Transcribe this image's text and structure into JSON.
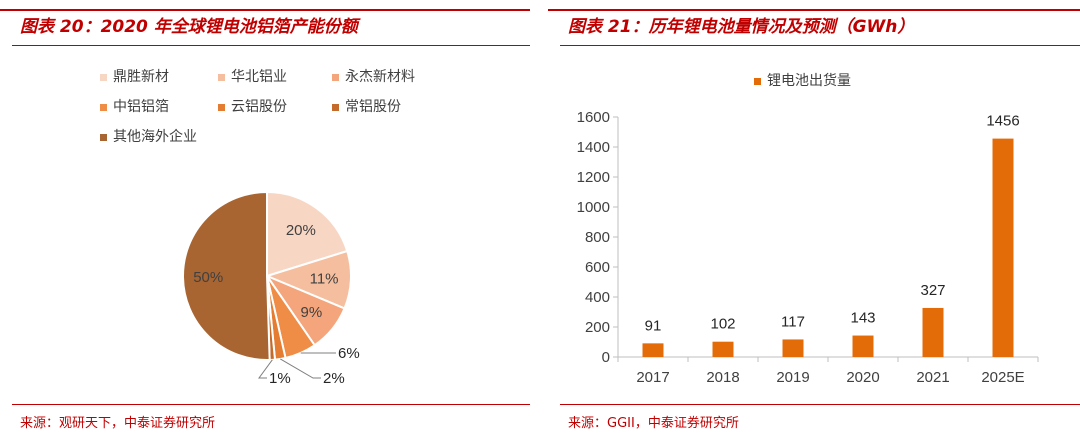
{
  "left": {
    "title": "图表 20：2020 年全球锂电池铝箔产能份额",
    "source": "来源：观研天下，中泰证券研究所"
  },
  "right": {
    "title": "图表 21：历年锂电池量情况及预测（GWh）",
    "source": "来源：GGII，中泰证券研究所"
  },
  "chart_data": [
    {
      "type": "pie",
      "title": "2020 年全球锂电池铝箔产能份额",
      "labels": [
        "鼎胜新材",
        "华北铝业",
        "永杰新材料",
        "中铝铝箔",
        "云铝股份",
        "常铝股份",
        "其他海外企业"
      ],
      "values": [
        20,
        11,
        9,
        6,
        2,
        1,
        50
      ],
      "value_labels": [
        "20%",
        "11%",
        "9%",
        "6%",
        "2%",
        "1%",
        "50%"
      ],
      "colors": [
        "#f8d6c4",
        "#f5bf9f",
        "#f4a57c",
        "#ef8c46",
        "#e47d32",
        "#c46a2a",
        "#a86532"
      ],
      "legend_position": "top"
    },
    {
      "type": "bar",
      "title": "历年锂电池量情况及预测（GWh）",
      "categories": [
        "2017",
        "2018",
        "2019",
        "2020",
        "2021",
        "2025E"
      ],
      "series": [
        {
          "name": "锂电池出货量",
          "values": [
            91,
            102,
            117,
            143,
            327,
            1456
          ],
          "color": "#e36c09"
        }
      ],
      "ylim": [
        0,
        1600
      ],
      "yticks": [
        0,
        200,
        400,
        600,
        800,
        1000,
        1200,
        1400,
        1600
      ],
      "grid": false,
      "legend_position": "top"
    }
  ]
}
